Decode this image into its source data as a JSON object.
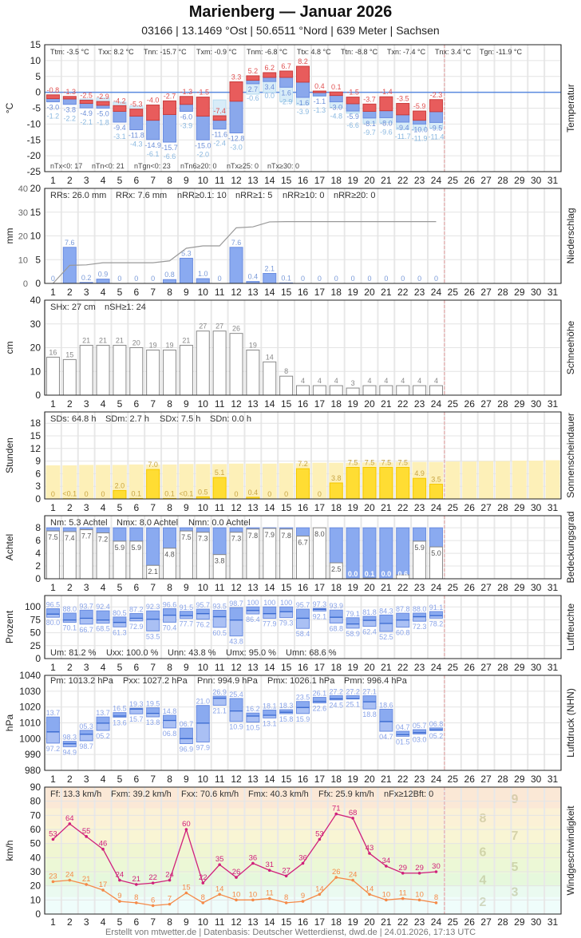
{
  "header": {
    "title": "Marienberg  —  Januar 2026",
    "subtitle": "03166  |  13.1469 °Ost  |  50.6511 °Nord  |  639 Meter  |  Sachsen"
  },
  "footer": "Erstellt von mtwetter.de | Datenbasis: Deutscher Wetterdienst, dwd.de | 24.01.2026, 17:13 UTC",
  "colors": {
    "tx": "#e85c5c",
    "tn": "#8aa8ec",
    "tgn": "#9cc8e8",
    "precip": "#8aaaf0",
    "sun": "#ffdd33",
    "sun_possible": "#fdf0b8",
    "cloud": "#8aaaf0",
    "fx": "#d0207a",
    "ff": "#f58a48",
    "today_line": "#e8a0a0"
  },
  "chart_data": [
    {
      "type": "bar",
      "name_right": "Temperatur",
      "ylabel": "°C",
      "ylim": [
        -25,
        15
      ],
      "grid": true,
      "yticks": [
        15,
        10,
        5,
        0,
        -5,
        -10,
        -15,
        -20,
        -25
      ],
      "x": [
        1,
        2,
        3,
        4,
        5,
        6,
        7,
        8,
        9,
        10,
        11,
        12,
        13,
        14,
        15,
        16,
        17,
        18,
        19,
        20,
        21,
        22,
        23,
        24,
        25,
        26,
        27,
        28,
        29,
        30,
        31
      ],
      "tx": [
        -0.8,
        -1.3,
        -2.5,
        -2.9,
        -4.2,
        -5.3,
        -4.0,
        -2.7,
        -1.3,
        -1.5,
        -7.4,
        3.3,
        5.2,
        6.2,
        6.7,
        8.2,
        0.4,
        0.1,
        -1.5,
        -3.7,
        -1.4,
        -3.5,
        -5.9,
        -2.3
      ],
      "tm": [
        -2.0,
        -2.1,
        -3.5,
        -4.1,
        -6.0,
        -7.5,
        -8.8,
        -7.0,
        -3.8,
        -7.5,
        -8.8,
        -2.8,
        3.8,
        4.7,
        4.7,
        3.2,
        -0.1,
        -1.0,
        -3.6,
        -6.0,
        -5.8,
        -7.1,
        -8.8,
        -6.1
      ],
      "tn": [
        -3.0,
        -3.8,
        -4.9,
        -5.0,
        -9.4,
        -11.8,
        -14.9,
        -15.7,
        -6.0,
        -15.0,
        -11.6,
        -12.8,
        2.7,
        3.4,
        1.6,
        -1.6,
        -1.1,
        -3.0,
        -5.9,
        -8.1,
        -8.0,
        -9.4,
        -10.0,
        -9.5
      ],
      "tgn": [
        -1.2,
        -2.2,
        -2.1,
        -1.8,
        -3.1,
        -4.3,
        -6.1,
        -6.6,
        -3.9,
        -2.0,
        -2.4,
        -3.0,
        -0.6,
        0.0,
        -2.9,
        -3.9,
        -1.3,
        -4.8,
        -6.6,
        -9.7,
        -9.6,
        -11.7,
        -11.9,
        -11.4
      ],
      "stats_top": [
        "Ttm: -3.5 °C",
        "Txx: 8.2 °C",
        "Tnn: -15.7 °C",
        "Txm: -0.9 °C",
        "Tnm: -6.8 °C",
        "Ttx: 4.8 °C",
        "Ttn: -8.8 °C",
        "Txn: -7.4 °C",
        "Tnx: 3.4 °C",
        "Tgn: -11.9 °C"
      ],
      "stats_bottom": [
        "nTx<0: 17",
        "nTn<0: 21",
        "nTgn<0: 23",
        "nTn6≥20: 0",
        "nTx≥25: 0",
        "nTx≥30: 0"
      ]
    },
    {
      "type": "bar",
      "name_right": "Niederschlag",
      "ylabel": "mm",
      "ylim": [
        0,
        20
      ],
      "ylim_cumulative": [
        0,
        40
      ],
      "yticks": [
        20,
        15,
        10,
        5,
        0
      ],
      "yticks_cumulative": [
        40,
        30,
        20,
        10,
        0
      ],
      "values": [
        0,
        7.6,
        0.2,
        0.9,
        0,
        0,
        0,
        0.8,
        5.3,
        1.0,
        0,
        7.6,
        0.4,
        2.1,
        0.1,
        0,
        0,
        0,
        0,
        0,
        0,
        0,
        0,
        0
      ],
      "labels": [
        "0",
        "7.6",
        "0.2",
        "0.9",
        "0",
        "0",
        "0",
        "0.8",
        "5.3",
        "1.0",
        "0",
        "7.6",
        "0.4",
        "2.1",
        "0.1",
        "0",
        "0",
        "0",
        "0",
        "0",
        "0",
        "0",
        "0",
        "0"
      ],
      "cumulative": [
        0,
        7.6,
        7.8,
        8.7,
        8.7,
        8.7,
        8.7,
        9.5,
        14.8,
        15.8,
        15.8,
        23.4,
        23.8,
        25.9,
        26.0,
        26.0,
        26.0,
        26.0,
        26.0,
        26.0,
        26.0,
        26.0,
        26.0,
        26.0
      ],
      "stats_top": [
        "RRs: 26.0 mm",
        "RRx: 7.6 mm",
        "nRR≥0.1: 10",
        "nRR≥1: 5",
        "nRR≥10: 0",
        "nRR≥20: 0"
      ]
    },
    {
      "type": "bar",
      "name_right": "Schneehöhe",
      "ylabel": "cm",
      "ylim": [
        0,
        40
      ],
      "yticks": [
        40,
        30,
        20,
        10,
        0
      ],
      "values": [
        16,
        15,
        21,
        21,
        21,
        20,
        19,
        19,
        21,
        27,
        27,
        26,
        19,
        14,
        8,
        4,
        4,
        4,
        3,
        4,
        4,
        4,
        4,
        4
      ],
      "stats_top": [
        "SHx: 27 cm",
        "nSH≥1: 24"
      ]
    },
    {
      "type": "bar",
      "name_right": "Sonnenscheindauer",
      "ylabel": "Stunden",
      "ylim": [
        0,
        20.7
      ],
      "yticks": [
        18,
        15,
        12,
        9,
        6,
        3,
        0
      ],
      "values": [
        0,
        0.05,
        0,
        0,
        2.0,
        0.1,
        7.0,
        0.1,
        0.05,
        0.5,
        5.1,
        0,
        0.4,
        0,
        0,
        7.2,
        0,
        3.8,
        7.5,
        7.5,
        7.5,
        7.5,
        4.9,
        3.5
      ],
      "labels": [
        "0",
        "<0.1",
        "0",
        "0",
        "2.0",
        "0.1",
        "7.0",
        "0.1",
        "<0.1",
        "0.5",
        "5.1",
        "0",
        "0.4",
        "0",
        "0",
        "7.2",
        "0",
        "3.8",
        "7.5",
        "7.5",
        "7.5",
        "7.5",
        "4.9",
        "3.5"
      ],
      "possible": [
        8.0,
        8.0,
        8.1,
        8.1,
        8.1,
        8.2,
        8.2,
        8.2,
        8.3,
        8.3,
        8.3,
        8.4,
        8.4,
        8.4,
        8.5,
        8.5,
        8.6,
        8.6,
        8.6,
        8.7,
        8.7,
        8.8,
        8.8,
        8.8,
        8.9,
        8.9,
        9.0,
        9.0,
        9.1,
        9.1,
        9.2
      ],
      "stats_top": [
        "SDs: 64.8 h",
        "SDm: 2.7 h",
        "SDx: 7.5 h",
        "SDn: 0.0 h"
      ]
    },
    {
      "type": "bar",
      "name_right": "Bedeckungsgrad",
      "ylabel": "Achtel",
      "ylim": [
        0,
        9.9
      ],
      "yticks": [
        8,
        6,
        4,
        2,
        0
      ],
      "values": [
        7.5,
        7.4,
        7.7,
        7.2,
        5.9,
        5.9,
        2.1,
        4.8,
        7.5,
        7.3,
        3.8,
        7.3,
        7.8,
        7.9,
        7.8,
        6.7,
        8.0,
        2.5,
        0.0,
        0.1,
        0.0,
        0.6,
        5.9,
        5.0
      ],
      "stats_top": [
        "Nm: 5.3 Achtel",
        "Nmx: 8.0 Achtel",
        "Nmn: 0.0 Achtel"
      ]
    },
    {
      "type": "bar",
      "name_right": "Luftfeuchte",
      "ylabel": "Prozent",
      "ylim": [
        0,
        122
      ],
      "yticks": [
        100,
        75,
        50,
        25,
        0
      ],
      "max": [
        96.5,
        88.0,
        93.7,
        92.4,
        80.5,
        87.2,
        92.3,
        96.6,
        91.5,
        95.7,
        93.5,
        98.7,
        100,
        100,
        100,
        95.7,
        97.3,
        93.9,
        79.1,
        81.8,
        84.3,
        87.8,
        88.0,
        91.1
      ],
      "mean": [
        86,
        74.5,
        78,
        74.5,
        70,
        78,
        76,
        84,
        83,
        87,
        81,
        74.5,
        93,
        87,
        90.5,
        78,
        95.3,
        80,
        67,
        74,
        68,
        74.5,
        81,
        83
      ],
      "min": [
        80.0,
        70.1,
        66.7,
        68.5,
        61.3,
        72.9,
        53.5,
        70.4,
        77.7,
        76.2,
        60.5,
        43.8,
        86.4,
        77.9,
        79.3,
        58.4,
        92.1,
        68.8,
        58.9,
        62.4,
        52.5,
        60.8,
        72.3,
        78.2
      ],
      "stats_top": [
        "Um: 81.2 %",
        "Uxx: 100.0 %",
        "Unn: 43.8 %",
        "Umx: 95.0 %",
        "Umn: 68.6 %"
      ]
    },
    {
      "type": "bar",
      "name_right": "Luftdruck (NHN)",
      "ylabel": "hPa",
      "ylim": [
        980,
        1040
      ],
      "yticks": [
        1040,
        1030,
        1020,
        1010,
        1000,
        990,
        980
      ],
      "max": [
        1013.7,
        998.3,
        1005.3,
        1013.7,
        1016.5,
        1019.3,
        1019.5,
        1014.8,
        1006.7,
        1021.0,
        1026.9,
        1025.4,
        1016.2,
        1018.1,
        1018.3,
        1023.5,
        1026.1,
        1027.2,
        1027.2,
        1027.1,
        1018.6,
        1004.7,
        1005.7,
        1006.8
      ],
      "mean": [
        1004.3,
        996.8,
        1002.8,
        1009.8,
        1014.3,
        1018.7,
        1016,
        1011.5,
        1000,
        1009.8,
        1025.5,
        1017.5,
        1014.3,
        1014.8,
        1016.7,
        1019.7,
        1023.5,
        1025.2,
        1025.2,
        1023.3,
        1010.8,
        1002.5,
        1003.8,
        1005.5
      ],
      "min": [
        997.2,
        994.9,
        998.7,
        1005.2,
        1013.6,
        1015.7,
        1013.8,
        1006.8,
        996.9,
        997.9,
        1021.1,
        1010.9,
        1010.5,
        1013.1,
        1015.8,
        1015.9,
        1022.6,
        1024.5,
        1025.1,
        1018.8,
        1004.7,
        1001.5,
        1003.0,
        1005.2
      ],
      "stats_top": [
        "Pm: 1013.2 hPa",
        "Pxx: 1027.2 hPa",
        "Pnn: 994.9 hPa",
        "Pmx: 1026.1 hPa",
        "Pmn: 996.4 hPa"
      ]
    },
    {
      "type": "line",
      "name_right": "Windgeschwindigkeit",
      "ylabel": "km/h",
      "ylim": [
        0,
        90
      ],
      "yticks": [
        90,
        80,
        70,
        60,
        50,
        40,
        30,
        20,
        10,
        0
      ],
      "beaufort_labels": [
        "2",
        "3",
        "4",
        "5",
        "6",
        "7",
        "8",
        "9"
      ],
      "fx": [
        53,
        64,
        55,
        46,
        24,
        21,
        22,
        24,
        60,
        22,
        35,
        26,
        36,
        31,
        27,
        36,
        53,
        71,
        68,
        43,
        34,
        29,
        29,
        30
      ],
      "ff": [
        23,
        24,
        21,
        17,
        9,
        8,
        6,
        7,
        15,
        8,
        14,
        10,
        10,
        11,
        8,
        9,
        14,
        26,
        24,
        14,
        10,
        11,
        10,
        8
      ],
      "stats_top": [
        "Ff: 13.3 km/h",
        "Fxm: 39.2 km/h",
        "Fxx: 70.6 km/h",
        "Fmx: 40.3 km/h",
        "Ffx: 25.9 km/h",
        "nFx≥12Bft: 0"
      ]
    }
  ]
}
